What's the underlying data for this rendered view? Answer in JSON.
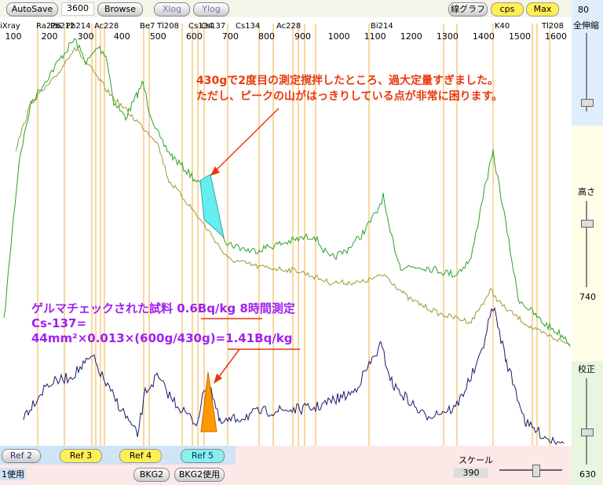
{
  "toolbar": {
    "autosave": "AutoSave",
    "duration": "3600",
    "browse": "Browse",
    "xlog": "Xlog",
    "ylog": "Ylog",
    "graph_mode": "線グラフ",
    "cps": "cps",
    "max": "Max"
  },
  "right_panel": {
    "top_value": "80",
    "zoom_label": "全伸縮",
    "height_label": "高さ",
    "height_value": "740",
    "calib_label": "校正",
    "calib_value": "630"
  },
  "x_axis": {
    "ticks": [
      100,
      200,
      300,
      400,
      500,
      600,
      700,
      800,
      900,
      1000,
      1100,
      1200,
      1300,
      1400,
      1500,
      1600
    ]
  },
  "peak_labels": [
    "iXray",
    "Ra226",
    "Pb212",
    "Pb214",
    "Ac228",
    "Be7",
    "Tl208",
    "Cs134",
    "Cs137",
    "Cs134",
    "Ac228",
    "Bi214",
    "K40",
    "Tl208"
  ],
  "annotations": {
    "note_line1": "430gで2度目の測定撹拌したところ、過大定量すぎました。",
    "note_line2": "ただし、ピークの山がはっきりしている点が非常に困ります。",
    "sample_line": "ゲルマチェックされた試料 0.6Bq/kg 8時間測定",
    "cs_line": "Cs-137=",
    "formula_line": "44mm²×0.013×(600g/430g)=1.41Bq/kg"
  },
  "bottom_bar": {
    "ref2": "Ref 2",
    "ref3": "Ref 3",
    "ref4": "Ref 4",
    "ref5": "Ref 5",
    "use1": "1使用",
    "bkg2": "BKG2",
    "bkg2_use": "BKG2使用",
    "scale_label": "スケール",
    "scale_value": "390"
  }
}
